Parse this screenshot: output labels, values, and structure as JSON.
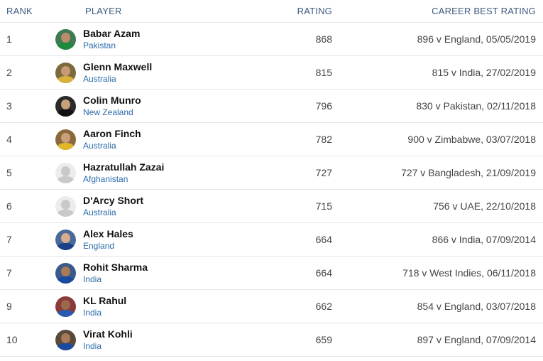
{
  "header": {
    "rank": "RANK",
    "player": "PLAYER",
    "rating": "RATING",
    "career_best": "CAREER BEST RATING"
  },
  "rows": [
    {
      "rank": "1",
      "name": "Babar Azam",
      "country": "Pakistan",
      "rating": "868",
      "best": "896 v England, 05/05/2019",
      "avatar": {
        "bg": "#3f7a55",
        "skin": "#b98c6b",
        "shirt": "#1d8a3a"
      }
    },
    {
      "rank": "2",
      "name": "Glenn Maxwell",
      "country": "Australia",
      "rating": "815",
      "best": "815 v India, 27/02/2019",
      "avatar": {
        "bg": "#7a6a3c",
        "skin": "#c89a78",
        "shirt": "#d8b23a"
      }
    },
    {
      "rank": "3",
      "name": "Colin Munro",
      "country": "New Zealand",
      "rating": "796",
      "best": "830 v Pakistan, 02/11/2018",
      "avatar": {
        "bg": "#2a2a2a",
        "skin": "#c9a07c",
        "shirt": "#111111"
      }
    },
    {
      "rank": "4",
      "name": "Aaron Finch",
      "country": "Australia",
      "rating": "782",
      "best": "900 v Zimbabwe, 03/07/2018",
      "avatar": {
        "bg": "#8a6a3a",
        "skin": "#caa07c",
        "shirt": "#e0b72c"
      }
    },
    {
      "rank": "5",
      "name": "Hazratullah Zazai",
      "country": "Afghanistan",
      "rating": "727",
      "best": "727 v Bangladesh, 21/09/2019",
      "avatar": null
    },
    {
      "rank": "6",
      "name": "D'Arcy Short",
      "country": "Australia",
      "rating": "715",
      "best": "756 v UAE, 22/10/2018",
      "avatar": null
    },
    {
      "rank": "7",
      "name": "Alex Hales",
      "country": "England",
      "rating": "664",
      "best": "866 v India, 07/09/2014",
      "avatar": {
        "bg": "#4a6a9a",
        "skin": "#d8ac8c",
        "shirt": "#1d3f8a"
      }
    },
    {
      "rank": "7",
      "name": "Rohit Sharma",
      "country": "India",
      "rating": "664",
      "best": "718 v West Indies, 06/11/2018",
      "avatar": {
        "bg": "#3a5a8a",
        "skin": "#a87a58",
        "shirt": "#1a4aa0"
      }
    },
    {
      "rank": "9",
      "name": "KL Rahul",
      "country": "India",
      "rating": "662",
      "best": "854 v England, 03/07/2018",
      "avatar": {
        "bg": "#8a3a3a",
        "skin": "#9a6a4a",
        "shirt": "#2a5ab0"
      }
    },
    {
      "rank": "10",
      "name": "Virat Kohli",
      "country": "India",
      "rating": "659",
      "best": "897 v England, 07/09/2014",
      "avatar": {
        "bg": "#5a4a3a",
        "skin": "#a87a58",
        "shirt": "#1a4aa0"
      }
    }
  ]
}
